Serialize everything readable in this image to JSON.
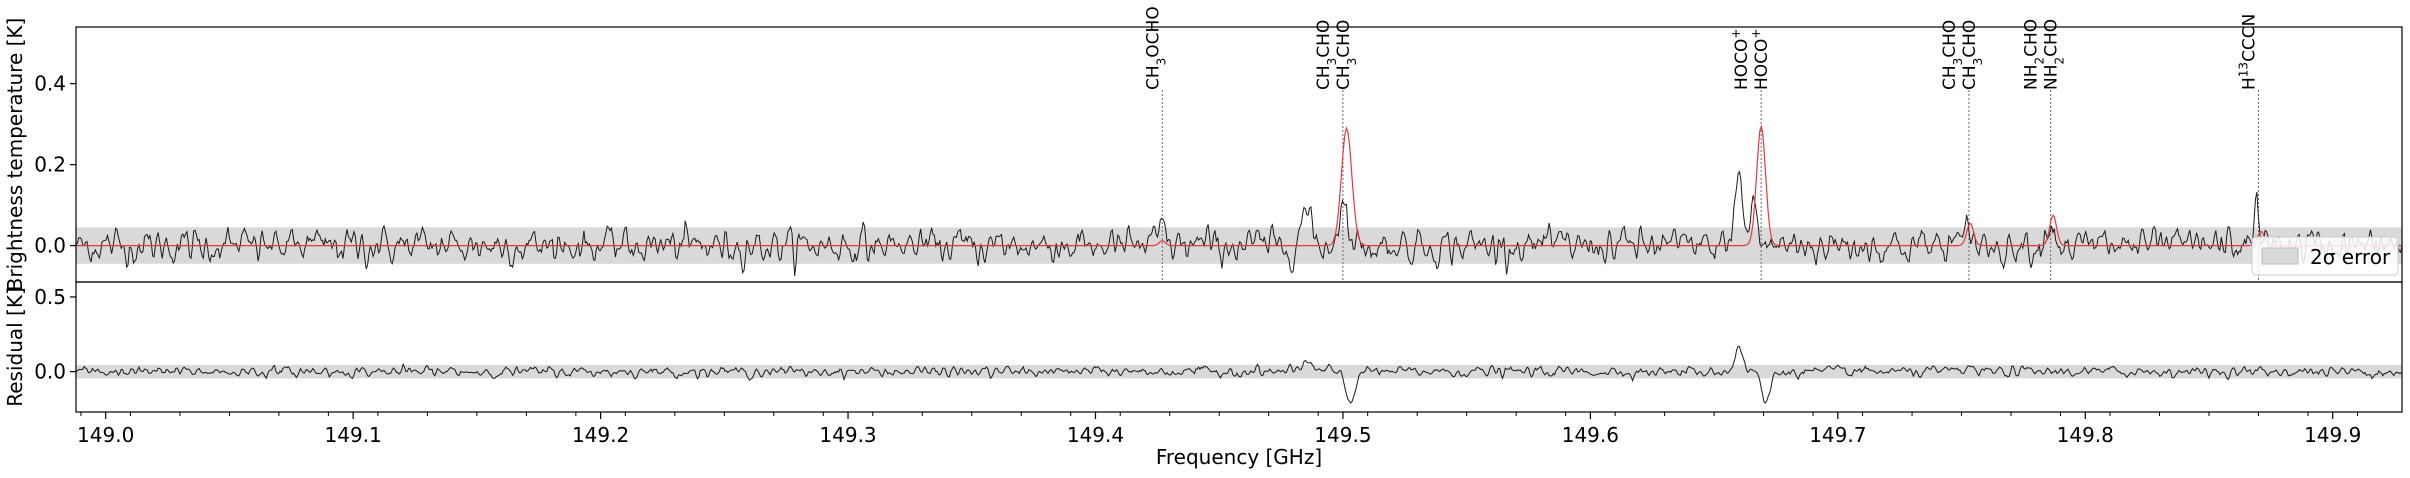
{
  "chart_data": [
    {
      "type": "line",
      "panel": "spectrum",
      "ylabel": "Brightness temperature [K]",
      "xlim": [
        148.988,
        149.928
      ],
      "ylim": [
        -0.09,
        0.54
      ],
      "yticks": [
        0.0,
        0.2,
        0.4
      ],
      "ytick_labels": [
        "0.0",
        "0.2",
        "0.4"
      ],
      "grid": false,
      "error_band": {
        "label": "2σ error",
        "low": -0.045,
        "high": 0.045,
        "color": "#d9d9d9"
      },
      "legend": {
        "position": "lower-right",
        "label": "2σ error"
      },
      "series": [
        {
          "role": "observed",
          "color": "#1a1a1a",
          "noise_sigma": 0.022,
          "features": [
            [
              149.485,
              0.08,
              0.0022
            ],
            [
              149.5,
              0.11,
              0.0018
            ],
            [
              149.66,
              0.17,
              0.0016
            ],
            [
              149.666,
              0.12,
              0.0012
            ],
            [
              149.753,
              0.06,
              0.0012
            ],
            [
              149.786,
              0.07,
              0.0014
            ],
            [
              149.869,
              0.09,
              0.0012
            ],
            [
              149.427,
              0.05,
              0.0012
            ]
          ]
        },
        {
          "role": "model",
          "color": "#e8383d",
          "peaks": [
            [
              149.427,
              0.012,
              0.0012
            ],
            [
              149.5015,
              0.29,
              0.0021
            ],
            [
              149.669,
              0.295,
              0.0018
            ],
            [
              149.7535,
              0.055,
              0.0014
            ],
            [
              149.787,
              0.075,
              0.0014
            ],
            [
              149.871,
              0.035,
              0.0014
            ]
          ]
        }
      ],
      "line_markers": [
        {
          "x": 149.427,
          "labels": [
            "CH$_3$OCHO"
          ],
          "tex": [
            [
              [
                "CH",
                ""
              ],
              [
                "3",
                "sub"
              ],
              [
                "OCHO",
                ""
              ]
            ]
          ]
        },
        {
          "x": 149.5,
          "labels": [
            "CH$_3$CHO",
            "CH$_3$CHO"
          ],
          "tex": [
            [
              [
                "CH",
                ""
              ],
              [
                "3",
                "sub"
              ],
              [
                "CHO",
                ""
              ]
            ],
            [
              [
                "CH",
                ""
              ],
              [
                "3",
                "sub"
              ],
              [
                "CHO",
                ""
              ]
            ]
          ]
        },
        {
          "x": 149.669,
          "labels": [
            "HOCO$^+$",
            "HOCO$^+$"
          ],
          "tex": [
            [
              [
                "HOCO",
                ""
              ],
              [
                "+",
                "sup"
              ]
            ],
            [
              [
                "HOCO",
                ""
              ],
              [
                "+",
                "sup"
              ]
            ]
          ]
        },
        {
          "x": 149.753,
          "labels": [
            "CH$_3$CHO",
            "CH$_3$CHO"
          ],
          "tex": [
            [
              [
                "CH",
                ""
              ],
              [
                "3",
                "sub"
              ],
              [
                "CHO",
                ""
              ]
            ],
            [
              [
                "CH",
                ""
              ],
              [
                "3",
                "sub"
              ],
              [
                "CHO",
                ""
              ]
            ]
          ]
        },
        {
          "x": 149.786,
          "labels": [
            "NH$_2$CHO",
            "NH$_2$CHO"
          ],
          "tex": [
            [
              [
                "NH",
                ""
              ],
              [
                "2",
                "sub"
              ],
              [
                "CHO",
                ""
              ]
            ],
            [
              [
                "NH",
                ""
              ],
              [
                "2",
                "sub"
              ],
              [
                "CHO",
                ""
              ]
            ]
          ]
        },
        {
          "x": 149.87,
          "labels": [
            "H$^{13}$CCCN"
          ],
          "tex": [
            [
              [
                "H",
                ""
              ],
              [
                "13",
                "sup"
              ],
              [
                "CCCN",
                ""
              ]
            ]
          ]
        }
      ]
    },
    {
      "type": "line",
      "panel": "residual",
      "xlabel": "Frequency [GHz]",
      "ylabel": "Residual [K]",
      "xlim": [
        148.988,
        149.928
      ],
      "ylim": [
        -0.27,
        0.6
      ],
      "xticks": [
        149.0,
        149.1,
        149.2,
        149.3,
        149.4,
        149.5,
        149.6,
        149.7,
        149.8,
        149.9
      ],
      "xtick_labels": [
        "149.0",
        "149.1",
        "149.2",
        "149.3",
        "149.4",
        "149.5",
        "149.6",
        "149.7",
        "149.8",
        "149.9"
      ],
      "yticks": [
        0.0,
        0.5
      ],
      "ytick_labels": [
        "0.0",
        "0.5"
      ],
      "error_band": {
        "low": -0.045,
        "high": 0.045,
        "color": "#d9d9d9"
      },
      "series": [
        {
          "role": "residual",
          "color": "#1a1a1a",
          "noise_sigma": 0.02,
          "features": [
            [
              149.485,
              0.06,
              0.0022
            ],
            [
              149.503,
              -0.2,
              0.0018
            ],
            [
              149.66,
              0.17,
              0.0016
            ],
            [
              149.671,
              -0.22,
              0.0016
            ],
            [
              149.753,
              0.03,
              0.0012
            ]
          ]
        }
      ]
    }
  ]
}
